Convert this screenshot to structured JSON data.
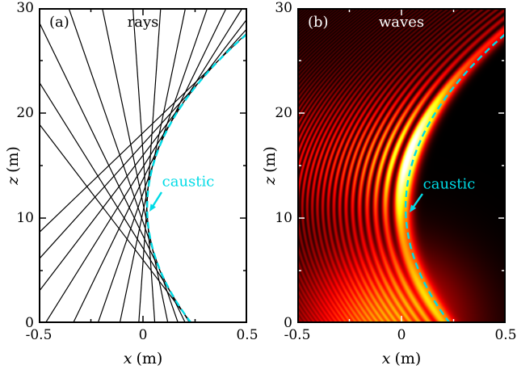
{
  "figure": {
    "panels": [
      {
        "tag": "(a)",
        "title": "rays",
        "caustic_label": "caustic",
        "xlabel": {
          "var": "x",
          "unit": "(m)"
        },
        "ylabel": {
          "var": "z",
          "unit": "(m)"
        }
      },
      {
        "tag": "(b)",
        "title": "waves",
        "caustic_label": "caustic",
        "xlabel": {
          "var": "x",
          "unit": "(m)"
        },
        "ylabel": {
          "var": "z",
          "unit": "(m)"
        }
      }
    ]
  },
  "chart_data": [
    {
      "type": "line",
      "panel": "a",
      "title": "rays",
      "xlabel": "x (m)",
      "ylabel": "z (m)",
      "xlim": [
        -0.5,
        0.5
      ],
      "ylim": [
        0,
        30
      ],
      "x_ticks": [
        -0.5,
        0,
        0.5
      ],
      "x_tick_labels": [
        "-0.5",
        "0",
        "0.5"
      ],
      "x_minor_ticks": [
        -0.25,
        0.25
      ],
      "y_ticks": [
        0,
        10,
        20,
        30
      ],
      "y_tick_labels": [
        "0",
        "10",
        "20",
        "30"
      ],
      "y_minor_ticks": [
        5,
        15,
        25
      ],
      "grid": false,
      "caustic": {
        "label": "caustic",
        "color": "#00dbe6",
        "line_style": "dashed",
        "model": "x = x0 + a*(z - z0)^2",
        "params": {
          "x0": 0.02,
          "z0": 11.0,
          "a": 0.00175
        },
        "points": [
          {
            "z": 0,
            "x": 0.232
          },
          {
            "z": 3,
            "x": 0.132
          },
          {
            "z": 6,
            "x": 0.064
          },
          {
            "z": 9,
            "x": 0.027
          },
          {
            "z": 11,
            "x": 0.02
          },
          {
            "z": 13,
            "x": 0.027
          },
          {
            "z": 16,
            "x": 0.064
          },
          {
            "z": 19,
            "x": 0.132
          },
          {
            "z": 22,
            "x": 0.232
          },
          {
            "z": 25,
            "x": 0.363
          },
          {
            "z": 27.6,
            "x": 0.502
          }
        ]
      },
      "rays": {
        "color": "#000000",
        "description": "family of straight rays, each tangent to the caustic envelope",
        "tangency_z": [
          0,
          2,
          4,
          6,
          8,
          10,
          12,
          14,
          16,
          18,
          20,
          22,
          24,
          26
        ]
      }
    },
    {
      "type": "heatmap",
      "panel": "b",
      "title": "waves",
      "xlabel": "x (m)",
      "ylabel": "z (m)",
      "xlim": [
        -0.5,
        0.5
      ],
      "ylim": [
        0,
        30
      ],
      "x_ticks": [
        -0.5,
        0,
        0.5
      ],
      "x_tick_labels": [
        "-0.5",
        "0",
        "0.5"
      ],
      "x_minor_ticks": [
        -0.25,
        0.25
      ],
      "y_ticks": [
        0,
        10,
        20,
        30
      ],
      "y_tick_labels": [
        "0",
        "10",
        "20",
        "30"
      ],
      "y_minor_ticks": [
        5,
        15,
        25
      ],
      "colormap": "hot (black-red-orange-yellow-white)",
      "caustic": {
        "label": "caustic",
        "color": "#00dbe6",
        "line_style": "dashed",
        "model": "x = x0 + a*(z - z0)^2",
        "params": {
          "x0": 0.02,
          "z0": 11.0,
          "a": 0.00175
        }
      },
      "intensity_model": {
        "description": "Airy-type interference fringes on the illuminated (left) side of the caustic, exponential decay into the shadow (right) side, broad source glow near z=0, brightest focus region near z=16 on the caustic",
        "fringe_scale_x": 0.03,
        "amplitude_base": 0.5,
        "amplitude_peak": 1.0,
        "amplitude_peak_z": 16,
        "amplitude_sigma_z": 6,
        "shadow_decay_u": 1.1,
        "source_glow": {
          "amplitude": 0.42,
          "sigma_z": 6.5,
          "center_x": -0.08,
          "sigma_x": 0.38
        }
      }
    }
  ]
}
